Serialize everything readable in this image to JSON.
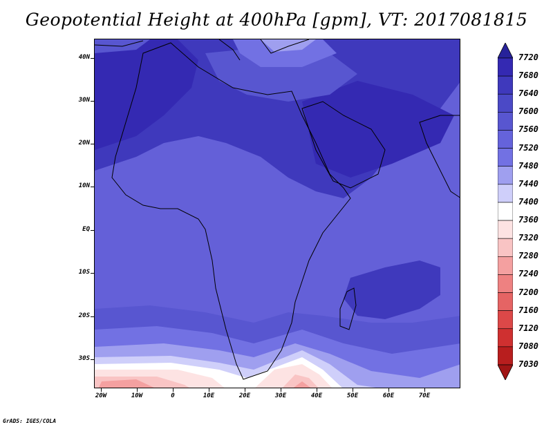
{
  "title": "Geopotential Height at 400hPa [gpm], VT: 2017081815",
  "credit": "GrADS: IGES/COLA",
  "lat_labels": [
    "40N",
    "30N",
    "20N",
    "10N",
    "EQ",
    "10S",
    "20S",
    "30S"
  ],
  "lon_labels": [
    "20W",
    "10W",
    "0",
    "10E",
    "20E",
    "30E",
    "40E",
    "50E",
    "60E",
    "70E"
  ],
  "colorbar": {
    "labels": [
      "7720",
      "7680",
      "7640",
      "7600",
      "7560",
      "7520",
      "7480",
      "7440",
      "7400",
      "7360",
      "7320",
      "7280",
      "7240",
      "7200",
      "7160",
      "7120",
      "7080",
      "7030"
    ],
    "colors": [
      "#27229a",
      "#3429b2",
      "#3f39bc",
      "#4b49c6",
      "#5856d0",
      "#6563db",
      "#7271e3",
      "#9f9fef",
      "#cfcffa",
      "#ffffff",
      "#fde3e3",
      "#f9c4c4",
      "#f4a0a0",
      "#ee8181",
      "#e56464",
      "#dc4848",
      "#cf3030",
      "#b81e1e",
      "#a01515"
    ]
  },
  "map": {
    "background_color": "#6460d8",
    "high_color": "#3e37b8",
    "low_color": "#f5a0a0"
  }
}
